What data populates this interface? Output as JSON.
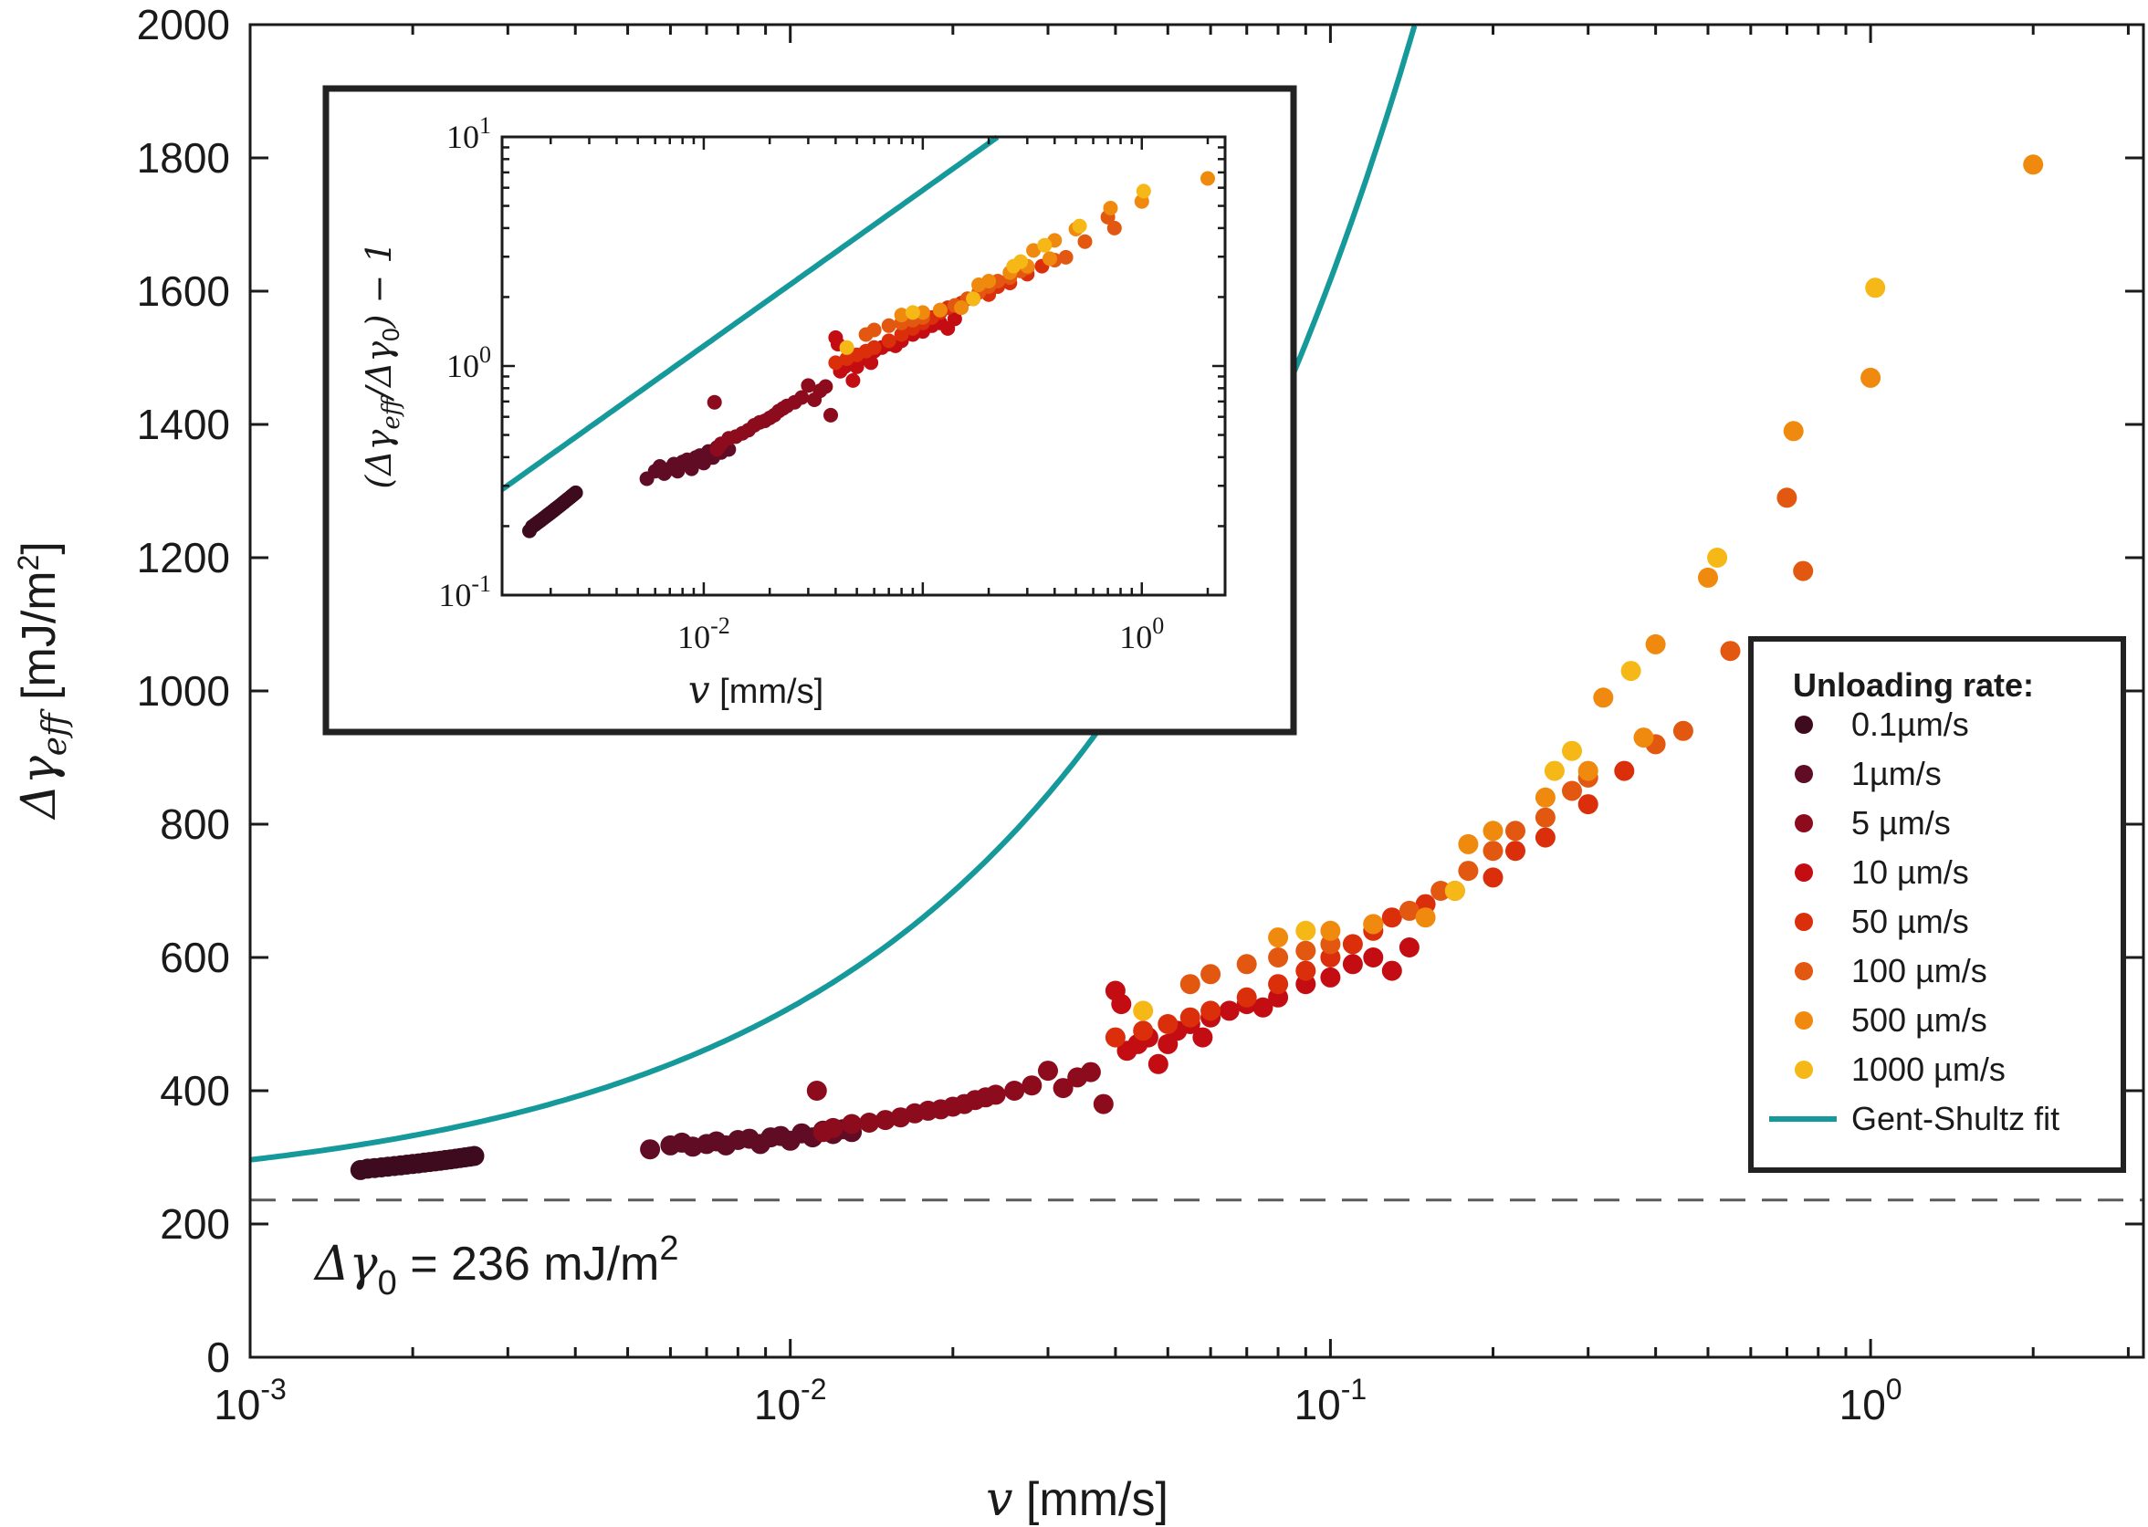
{
  "chart_data": [
    {
      "type": "scatter",
      "name": "main",
      "xscale": "log",
      "xlim": [
        0.001,
        3.2
      ],
      "ylim": [
        0,
        2000
      ],
      "xticks": [
        0.001,
        0.01,
        0.1,
        1
      ],
      "xtick_base": [
        "10",
        "10",
        "10",
        "10"
      ],
      "xtick_exp": [
        "-3",
        "-2",
        "-1",
        "0"
      ],
      "yticks": [
        0,
        200,
        400,
        600,
        800,
        1000,
        1200,
        1400,
        1600,
        1800,
        2000
      ],
      "ytick_labels": [
        "0",
        "200",
        "400",
        "600",
        "800",
        "1000",
        "1200",
        "1400",
        "1600",
        "1800",
        "2000"
      ],
      "xlabel_var": "v",
      "xlabel_unit": " [mm/s]",
      "ylabel_var": "Δγ",
      "ylabel_sub": "eff",
      "ylabel_unit": " [mJ/m",
      "ylabel_unit_sup": "2",
      "ylabel_unit_close": "]",
      "reference_line": {
        "y": 236,
        "style": "dashed"
      },
      "annotation": {
        "prefix": "Δγ",
        "sub": "0",
        "text": " = 236 mJ/m",
        "sup": "2"
      },
      "fit": {
        "name": "Gent-Shultz fit",
        "model": "dg0*(1+(v/v0)^n)",
        "dg0": 236,
        "v0": 0.00744,
        "n": 0.68,
        "color": "#16999a"
      },
      "series": [
        {
          "name": "0.1µm/s",
          "color": "#3d0a1e",
          "points": [
            [
              0.0016,
              281
            ],
            [
              0.00165,
              283
            ],
            [
              0.0017,
              284
            ],
            [
              0.00175,
              285
            ],
            [
              0.0018,
              286
            ],
            [
              0.00185,
              287
            ],
            [
              0.0019,
              288
            ],
            [
              0.00195,
              289
            ],
            [
              0.002,
              290
            ],
            [
              0.00205,
              291
            ],
            [
              0.0021,
              292
            ],
            [
              0.00215,
              293
            ],
            [
              0.0022,
              294
            ],
            [
              0.00225,
              295
            ],
            [
              0.0023,
              296
            ],
            [
              0.00235,
              297
            ],
            [
              0.0024,
              298
            ],
            [
              0.00245,
              299
            ],
            [
              0.0025,
              300
            ],
            [
              0.00255,
              301
            ],
            [
              0.0026,
              302
            ]
          ]
        },
        {
          "name": "1µm/s",
          "color": "#610c25",
          "points": [
            [
              0.0055,
              312
            ],
            [
              0.006,
              318
            ],
            [
              0.0063,
              322
            ],
            [
              0.0066,
              316
            ],
            [
              0.007,
              320
            ],
            [
              0.0073,
              324
            ],
            [
              0.0076,
              318
            ],
            [
              0.008,
              326
            ],
            [
              0.0084,
              328
            ],
            [
              0.0088,
              320
            ],
            [
              0.0092,
              330
            ],
            [
              0.0096,
              332
            ],
            [
              0.01,
              325
            ],
            [
              0.0105,
              336
            ],
            [
              0.011,
              330
            ],
            [
              0.0115,
              340
            ],
            [
              0.012,
              335
            ],
            [
              0.0125,
              342
            ],
            [
              0.013,
              338
            ]
          ]
        },
        {
          "name": "5 µm/s",
          "color": "#8c0b1c",
          "points": [
            [
              0.0112,
              400
            ],
            [
              0.0115,
              338
            ],
            [
              0.012,
              344
            ],
            [
              0.013,
              350
            ],
            [
              0.014,
              352
            ],
            [
              0.015,
              356
            ],
            [
              0.016,
              360
            ],
            [
              0.017,
              366
            ],
            [
              0.018,
              370
            ],
            [
              0.019,
              372
            ],
            [
              0.02,
              376
            ],
            [
              0.021,
              380
            ],
            [
              0.022,
              386
            ],
            [
              0.023,
              390
            ],
            [
              0.024,
              394
            ],
            [
              0.026,
              400
            ],
            [
              0.028,
              408
            ],
            [
              0.03,
              430
            ],
            [
              0.032,
              404
            ],
            [
              0.034,
              420
            ],
            [
              0.036,
              428
            ],
            [
              0.038,
              380
            ]
          ]
        },
        {
          "name": "10 µm/s",
          "color": "#c30d13",
          "points": [
            [
              0.04,
              550
            ],
            [
              0.041,
              530
            ],
            [
              0.042,
              460
            ],
            [
              0.044,
              470
            ],
            [
              0.046,
              480
            ],
            [
              0.048,
              440
            ],
            [
              0.05,
              470
            ],
            [
              0.052,
              490
            ],
            [
              0.055,
              500
            ],
            [
              0.058,
              480
            ],
            [
              0.06,
              510
            ],
            [
              0.065,
              520
            ],
            [
              0.07,
              530
            ],
            [
              0.075,
              525
            ],
            [
              0.08,
              540
            ],
            [
              0.09,
              560
            ],
            [
              0.1,
              570
            ],
            [
              0.11,
              590
            ],
            [
              0.12,
              600
            ],
            [
              0.13,
              580
            ],
            [
              0.14,
              615
            ]
          ]
        },
        {
          "name": "50 µm/s",
          "color": "#db2e0b",
          "points": [
            [
              0.04,
              480
            ],
            [
              0.045,
              490
            ],
            [
              0.05,
              500
            ],
            [
              0.055,
              510
            ],
            [
              0.06,
              520
            ],
            [
              0.07,
              540
            ],
            [
              0.08,
              560
            ],
            [
              0.09,
              580
            ],
            [
              0.1,
              600
            ],
            [
              0.11,
              620
            ],
            [
              0.12,
              640
            ],
            [
              0.13,
              660
            ],
            [
              0.15,
              680
            ],
            [
              0.17,
              700
            ],
            [
              0.2,
              720
            ],
            [
              0.22,
              760
            ],
            [
              0.25,
              780
            ],
            [
              0.3,
              830
            ],
            [
              0.35,
              880
            ]
          ]
        },
        {
          "name": "100 µm/s",
          "color": "#e25811",
          "points": [
            [
              0.055,
              560
            ],
            [
              0.06,
              575
            ],
            [
              0.07,
              590
            ],
            [
              0.08,
              600
            ],
            [
              0.09,
              610
            ],
            [
              0.1,
              620
            ],
            [
              0.12,
              650
            ],
            [
              0.14,
              670
            ],
            [
              0.16,
              700
            ],
            [
              0.18,
              730
            ],
            [
              0.2,
              760
            ],
            [
              0.22,
              790
            ],
            [
              0.25,
              810
            ],
            [
              0.28,
              850
            ],
            [
              0.3,
              870
            ],
            [
              0.4,
              920
            ],
            [
              0.45,
              940
            ],
            [
              0.55,
              1060
            ],
            [
              0.7,
              1290
            ],
            [
              0.75,
              1180
            ]
          ]
        },
        {
          "name": "500 µm/s",
          "color": "#f08a0e",
          "points": [
            [
              0.08,
              630
            ],
            [
              0.1,
              640
            ],
            [
              0.12,
              650
            ],
            [
              0.15,
              660
            ],
            [
              0.18,
              770
            ],
            [
              0.2,
              790
            ],
            [
              0.25,
              840
            ],
            [
              0.3,
              880
            ],
            [
              0.32,
              990
            ],
            [
              0.38,
              930
            ],
            [
              0.4,
              1070
            ],
            [
              0.5,
              1170
            ],
            [
              0.72,
              1390
            ],
            [
              1.0,
              1470
            ],
            [
              2.0,
              1790
            ]
          ]
        },
        {
          "name": "1000 µm/s",
          "color": "#f5b816",
          "points": [
            [
              0.045,
              520
            ],
            [
              0.09,
              640
            ],
            [
              0.17,
              700
            ],
            [
              0.26,
              880
            ],
            [
              0.28,
              910
            ],
            [
              0.36,
              1030
            ],
            [
              0.52,
              1200
            ],
            [
              1.02,
              1605
            ]
          ]
        }
      ]
    },
    {
      "type": "scatter",
      "name": "inset",
      "xscale": "log",
      "yscale": "log",
      "xlim": [
        0.0012,
        2.4
      ],
      "ylim": [
        0.1,
        10
      ],
      "xticks": [
        0.01,
        1
      ],
      "xtick_base": [
        "10",
        "10"
      ],
      "xtick_exp": [
        "-2",
        "0"
      ],
      "yticks": [
        0.1,
        1,
        10
      ],
      "ytick_base": [
        "10",
        "10",
        "10"
      ],
      "ytick_exp": [
        "-1",
        "0",
        "1"
      ],
      "xlabel_var": "v",
      "xlabel_unit": " [mm/s]",
      "ylabel_open": "(Δγ",
      "ylabel_sub": "eff",
      "ylabel_mid": "/Δγ",
      "ylabel_sub2": "0",
      "ylabel_close": ") − 1",
      "fit": {
        "model": "(v/v0)^n",
        "v0": 0.00744,
        "n": 0.68,
        "color": "#16999a"
      }
    }
  ],
  "legend": {
    "title": "Unloading rate:",
    "items": [
      {
        "label": "0.1µm/s",
        "color": "#3d0a1e",
        "kind": "dot"
      },
      {
        "label": "1µm/s",
        "color": "#610c25",
        "kind": "dot"
      },
      {
        "label": "5 µm/s",
        "color": "#8c0b1c",
        "kind": "dot"
      },
      {
        "label": "10 µm/s",
        "color": "#c30d13",
        "kind": "dot"
      },
      {
        "label": "50 µm/s",
        "color": "#db2e0b",
        "kind": "dot"
      },
      {
        "label": "100 µm/s",
        "color": "#e25811",
        "kind": "dot"
      },
      {
        "label": "500 µm/s",
        "color": "#f08a0e",
        "kind": "dot"
      },
      {
        "label": "1000 µm/s",
        "color": "#f5b816",
        "kind": "dot"
      },
      {
        "label": "Gent-Shultz fit",
        "color": "#16999a",
        "kind": "line"
      }
    ]
  }
}
